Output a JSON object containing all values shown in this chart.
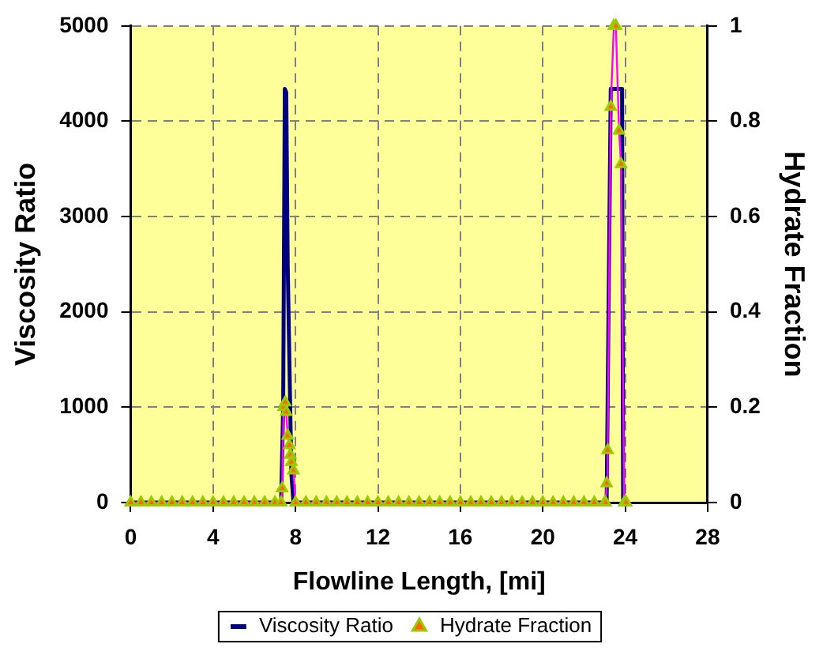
{
  "chart_data": {
    "type": "line",
    "xlabel": "Flowline Length, [mi]",
    "ylabel": "Viscosity Ratio",
    "y2label": "Hydrate Fraction",
    "xlim": [
      0,
      28
    ],
    "xticks": [
      0,
      4,
      8,
      12,
      16,
      20,
      24,
      28
    ],
    "ylim": [
      0,
      5000
    ],
    "yticks": [
      0,
      1000,
      2000,
      3000,
      4000,
      5000
    ],
    "y2lim": [
      0,
      1
    ],
    "y2ticks": [
      0,
      0.2,
      0.4,
      0.6,
      0.8,
      1
    ],
    "grid": true,
    "legend": "bottom",
    "line_style": "solid",
    "series": [
      {
        "name": "Viscosity Ratio",
        "color": "#000080",
        "marker": "none",
        "x": [
          0,
          7.3,
          7.4,
          7.48,
          7.55,
          7.62,
          7.7,
          7.8,
          7.9,
          23.1,
          23.15,
          23.3,
          23.85,
          23.9,
          24
        ],
        "values": [
          0,
          0,
          1000,
          4340,
          4300,
          2500,
          1500,
          300,
          0,
          0,
          0,
          4340,
          4340,
          0,
          0
        ]
      },
      {
        "name": "Hydrate Fraction",
        "color": "#ff00ff",
        "marker": "triangle",
        "axis": "y2",
        "x": [
          0,
          0.5,
          1,
          1.5,
          2,
          2.5,
          3,
          3.5,
          4,
          4.5,
          5,
          5.5,
          6,
          6.5,
          7,
          7.3,
          7.35,
          7.42,
          7.5,
          7.55,
          7.62,
          7.7,
          7.75,
          7.8,
          7.9,
          8,
          8.5,
          9,
          9.5,
          10,
          10.5,
          11,
          11.5,
          12,
          12.5,
          13,
          13.5,
          14,
          14.5,
          15,
          15.5,
          16,
          16.5,
          17,
          17.5,
          18,
          18.5,
          19,
          19.5,
          20,
          20.5,
          21,
          21.5,
          22,
          22.5,
          23,
          23.05,
          23.1,
          23.15,
          23.3,
          23.45,
          23.55,
          23.7,
          23.8,
          23.95,
          24.05
        ],
        "values": [
          0,
          0,
          0,
          0,
          0,
          0,
          0,
          0,
          0,
          0,
          0,
          0,
          0,
          0,
          0,
          0,
          0.03,
          0.2,
          0.21,
          0.19,
          0.14,
          0.12,
          0.1,
          0.085,
          0.067,
          0,
          0,
          0,
          0,
          0,
          0,
          0,
          0,
          0,
          0,
          0,
          0,
          0,
          0,
          0,
          0,
          0,
          0,
          0,
          0,
          0,
          0,
          0,
          0,
          0,
          0,
          0,
          0,
          0,
          0,
          0,
          0,
          0.04,
          0.11,
          0.83,
          1,
          1,
          0.78,
          0.71,
          0,
          0
        ]
      }
    ]
  }
}
